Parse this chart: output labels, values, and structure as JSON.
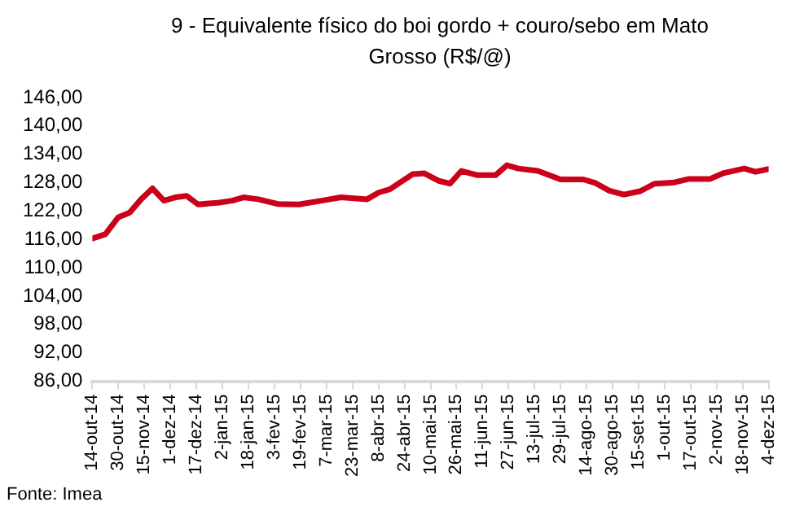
{
  "chart_data": {
    "type": "line",
    "title": "9 - Equivalente físico do boi gordo + couro/sebo em Mato Grosso (R$/@)",
    "x": [
      "2014-10-14",
      "2014-10-22",
      "2014-10-30",
      "2014-11-06",
      "2014-11-13",
      "2014-11-20",
      "2014-11-27",
      "2014-12-04",
      "2014-12-11",
      "2014-12-18",
      "2014-12-31",
      "2015-01-08",
      "2015-01-15",
      "2015-01-24",
      "2015-02-05",
      "2015-02-18",
      "2015-03-04",
      "2015-03-16",
      "2015-04-01",
      "2015-04-08",
      "2015-04-15",
      "2015-04-29",
      "2015-05-06",
      "2015-05-15",
      "2015-05-22",
      "2015-05-29",
      "2015-06-08",
      "2015-06-19",
      "2015-06-26",
      "2015-07-03",
      "2015-07-15",
      "2015-07-29",
      "2015-08-12",
      "2015-08-19",
      "2015-08-28",
      "2015-09-06",
      "2015-09-16",
      "2015-09-25",
      "2015-10-06",
      "2015-10-16",
      "2015-10-29",
      "2015-11-06",
      "2015-11-19",
      "2015-11-26",
      "2015-12-04"
    ],
    "series": [
      {
        "color": "#cc0019",
        "values": [
          116.2,
          117.1,
          120.7,
          121.7,
          124.5,
          126.8,
          124.2,
          124.9,
          125.2,
          123.4,
          123.8,
          124.2,
          124.9,
          124.5,
          123.5,
          123.4,
          124.2,
          124.9,
          124.5,
          125.9,
          126.6,
          129.8,
          130.0,
          128.4,
          127.8,
          130.5,
          129.6,
          129.6,
          131.7,
          131.0,
          130.5,
          128.7,
          128.7,
          128.0,
          126.3,
          125.5,
          126.2,
          127.8,
          128.0,
          128.8,
          128.8,
          130.0,
          131.0,
          130.3,
          130.9
        ]
      }
    ],
    "xlim": [
      "2014-10-14",
      "2015-12-04"
    ],
    "xticks": [
      {
        "value": "2014-10-14",
        "label": "14-out-14"
      },
      {
        "value": "2014-10-30",
        "label": "30-out-14"
      },
      {
        "value": "2014-11-15",
        "label": "15-nov-14"
      },
      {
        "value": "2014-12-01",
        "label": "1-dez-14"
      },
      {
        "value": "2014-12-17",
        "label": "17-dez-14"
      },
      {
        "value": "2015-01-02",
        "label": "2-jan-15"
      },
      {
        "value": "2015-01-18",
        "label": "18-jan-15"
      },
      {
        "value": "2015-02-03",
        "label": "3-fev-15"
      },
      {
        "value": "2015-02-19",
        "label": "19-fev-15"
      },
      {
        "value": "2015-03-07",
        "label": "7-mar-15"
      },
      {
        "value": "2015-03-23",
        "label": "23-mar-15"
      },
      {
        "value": "2015-04-08",
        "label": "8-abr-15"
      },
      {
        "value": "2015-04-24",
        "label": "24-abr-15"
      },
      {
        "value": "2015-05-10",
        "label": "10-mai-15"
      },
      {
        "value": "2015-05-26",
        "label": "26-mai-15"
      },
      {
        "value": "2015-06-11",
        "label": "11-jun-15"
      },
      {
        "value": "2015-06-27",
        "label": "27-jun-15"
      },
      {
        "value": "2015-07-13",
        "label": "13-jul-15"
      },
      {
        "value": "2015-07-29",
        "label": "29-jul-15"
      },
      {
        "value": "2015-08-14",
        "label": "14-ago-15"
      },
      {
        "value": "2015-08-30",
        "label": "30-ago-15"
      },
      {
        "value": "2015-09-15",
        "label": "15-set-15"
      },
      {
        "value": "2015-10-01",
        "label": "1-out-15"
      },
      {
        "value": "2015-10-17",
        "label": "17-out-15"
      },
      {
        "value": "2015-11-02",
        "label": "2-nov-15"
      },
      {
        "value": "2015-11-18",
        "label": "18-nov-15"
      },
      {
        "value": "2015-12-04",
        "label": "4-dez-15"
      }
    ],
    "ylim": [
      86,
      146
    ],
    "yticks": [
      {
        "value": 86,
        "label": "86,00"
      },
      {
        "value": 92,
        "label": "92,00"
      },
      {
        "value": 98,
        "label": "98,00"
      },
      {
        "value": 104,
        "label": "104,00"
      },
      {
        "value": 110,
        "label": "110,00"
      },
      {
        "value": 116,
        "label": "116,00"
      },
      {
        "value": 122,
        "label": "122,00"
      },
      {
        "value": 128,
        "label": "128,00"
      },
      {
        "value": 134,
        "label": "134,00"
      },
      {
        "value": 140,
        "label": "140,00"
      },
      {
        "value": 146,
        "label": "146,00"
      }
    ],
    "annotations": [
      "Fonte: Imea"
    ],
    "grid": false,
    "legend": false,
    "marker": "none",
    "line_style": "solid"
  }
}
